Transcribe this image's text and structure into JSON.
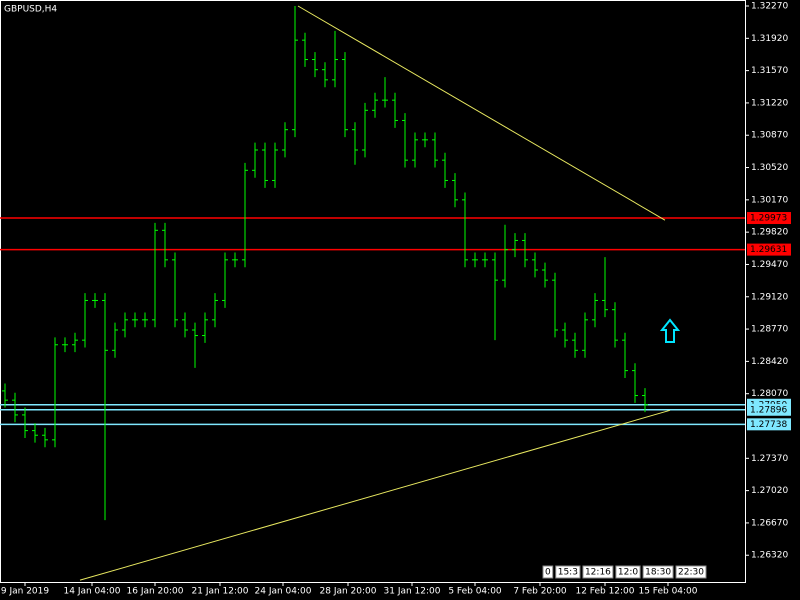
{
  "chart_data": {
    "type": "ohlc",
    "title": "GBPUSD,H4",
    "color": "#00ff00",
    "background": "#000000",
    "ylim": [
      1.2603,
      1.3227
    ],
    "xlim": [
      -0.5,
      74
    ],
    "yticks": [
      {
        "value": 1.3227,
        "label": "1.32270"
      },
      {
        "value": 1.3192,
        "label": "1.31920"
      },
      {
        "value": 1.3157,
        "label": "1.31570"
      },
      {
        "value": 1.3122,
        "label": "1.31220"
      },
      {
        "value": 1.3087,
        "label": "1.30870"
      },
      {
        "value": 1.3052,
        "label": "1.30520"
      },
      {
        "value": 1.3017,
        "label": "1.30170"
      },
      {
        "value": 1.2982,
        "label": "1.29820"
      },
      {
        "value": 1.2947,
        "label": "1.29470"
      },
      {
        "value": 1.2912,
        "label": "1.29120"
      },
      {
        "value": 1.2877,
        "label": "1.28770"
      },
      {
        "value": 1.2842,
        "label": "1.28420"
      },
      {
        "value": 1.2807,
        "label": "1.28070"
      },
      {
        "value": 1.2737,
        "label": "1.27370"
      },
      {
        "value": 1.2702,
        "label": "1.27020"
      },
      {
        "value": 1.2667,
        "label": "1.26670"
      },
      {
        "value": 1.2632,
        "label": "1.26320"
      }
    ],
    "xticks": [
      {
        "value": 2,
        "label": "9 Jan 2019"
      },
      {
        "value": 8.7,
        "label": "14 Jan 04:00"
      },
      {
        "value": 15,
        "label": "16 Jan 20:00"
      },
      {
        "value": 21.5,
        "label": "21 Jan 12:00"
      },
      {
        "value": 27.8,
        "label": "24 Jan 04:00"
      },
      {
        "value": 34.3,
        "label": "28 Jan 20:00"
      },
      {
        "value": 40.7,
        "label": "31 Jan 12:00"
      },
      {
        "value": 47,
        "label": "5 Feb 04:00"
      },
      {
        "value": 53.5,
        "label": "7 Feb 20:00"
      },
      {
        "value": 60,
        "label": "12 Feb 12:00"
      },
      {
        "value": 66.3,
        "label": "15 Feb 04:00"
      }
    ],
    "open": [
      1.281,
      1.28,
      1.2784,
      1.2767,
      1.2762,
      1.2757,
      1.286,
      1.286,
      1.2865,
      1.2908,
      1.2908,
      1.2854,
      1.2876,
      1.2887,
      1.2887,
      1.2887,
      1.2984,
      1.2952,
      1.2887,
      1.2876,
      1.287,
      1.2887,
      1.2908,
      1.2952,
      1.2952,
      1.3049,
      1.3071,
      1.3038,
      1.3071,
      1.3093,
      1.319,
      1.3169,
      1.3158,
      1.3147,
      1.3169,
      1.3093,
      1.3071,
      1.3114,
      1.3125,
      1.3125,
      1.3103,
      1.306,
      1.3082,
      1.3082,
      1.306,
      1.3038,
      1.3017,
      1.2952,
      1.2952,
      1.2952,
      1.293,
      1.2963,
      1.2973,
      1.2952,
      1.2941,
      1.293,
      1.2876,
      1.2865,
      1.2854,
      1.2887,
      1.2908,
      1.2898,
      1.2865,
      1.2832,
      1.2805
    ],
    "high": [
      1.2818,
      1.2808,
      1.2792,
      1.2775,
      1.277,
      1.2868,
      1.2868,
      1.2873,
      1.2916,
      1.2916,
      1.2916,
      1.2884,
      1.2895,
      1.2895,
      1.2895,
      1.2992,
      1.2992,
      1.296,
      1.2895,
      1.2884,
      1.2895,
      1.2916,
      1.296,
      1.296,
      1.3057,
      1.3079,
      1.3079,
      1.3079,
      1.3101,
      1.3227,
      1.3198,
      1.3177,
      1.3166,
      1.32,
      1.3177,
      1.3101,
      1.3122,
      1.3133,
      1.315,
      1.3133,
      1.3111,
      1.309,
      1.309,
      1.309,
      1.3068,
      1.3046,
      1.3025,
      1.296,
      1.296,
      1.296,
      1.299,
      1.2981,
      1.2981,
      1.296,
      1.2949,
      1.2938,
      1.2884,
      1.2873,
      1.2895,
      1.2916,
      1.2955,
      1.2906,
      1.2873,
      1.284,
      1.2813
    ],
    "low": [
      1.2792,
      1.2776,
      1.2759,
      1.2754,
      1.2749,
      1.2749,
      1.2852,
      1.2852,
      1.2857,
      1.29,
      1.267,
      1.2846,
      1.2868,
      1.2879,
      1.2879,
      1.2879,
      1.2944,
      1.2879,
      1.2868,
      1.2835,
      1.2862,
      1.2879,
      1.29,
      1.2944,
      1.2944,
      1.3041,
      1.303,
      1.303,
      1.3063,
      1.3085,
      1.3161,
      1.315,
      1.3139,
      1.3139,
      1.3085,
      1.3055,
      1.3063,
      1.3106,
      1.3117,
      1.3095,
      1.3052,
      1.3052,
      1.3074,
      1.3052,
      1.303,
      1.3009,
      1.2944,
      1.2944,
      1.2944,
      1.2865,
      1.2922,
      1.2955,
      1.2944,
      1.2933,
      1.2922,
      1.2868,
      1.2857,
      1.2846,
      1.2846,
      1.2879,
      1.289,
      1.2857,
      1.2824,
      1.2797,
      1.2787
    ],
    "close": [
      1.28,
      1.2784,
      1.2767,
      1.2762,
      1.2757,
      1.286,
      1.286,
      1.2865,
      1.2908,
      1.2908,
      1.2854,
      1.2876,
      1.2887,
      1.2887,
      1.2887,
      1.2984,
      1.2952,
      1.2887,
      1.2876,
      1.287,
      1.2887,
      1.2908,
      1.2952,
      1.2952,
      1.3049,
      1.3071,
      1.3038,
      1.3071,
      1.3093,
      1.319,
      1.3169,
      1.3158,
      1.3147,
      1.3169,
      1.3093,
      1.3071,
      1.3114,
      1.3125,
      1.3125,
      1.3103,
      1.306,
      1.3082,
      1.3082,
      1.306,
      1.3038,
      1.3017,
      1.2952,
      1.2952,
      1.2952,
      1.293,
      1.2963,
      1.2973,
      1.2952,
      1.2941,
      1.293,
      1.2876,
      1.2865,
      1.2854,
      1.2887,
      1.2908,
      1.2898,
      1.2865,
      1.2832,
      1.2805,
      1.2795
    ],
    "levels": [
      {
        "value": 1.29973,
        "label": "1.29973",
        "color": "#ff0000"
      },
      {
        "value": 1.29631,
        "label": "1.29631",
        "color": "#ff0000"
      },
      {
        "value": 1.2795,
        "label": "1.27950",
        "color": "#7fe8ff"
      },
      {
        "value": 1.27896,
        "label": "1.27896",
        "color": "#7fe8ff"
      },
      {
        "value": 1.27738,
        "label": "1.27738",
        "color": "#7fe8ff"
      }
    ],
    "trendlines": [
      {
        "x": [
          29.3,
          66
        ],
        "y": [
          1.3227,
          1.2995
        ],
        "color": "#e8e860"
      },
      {
        "x": [
          7.5,
          66.5
        ],
        "y": [
          1.2605,
          1.2789
        ],
        "color": "#e8e860"
      }
    ],
    "arrow": {
      "x": 66.5,
      "y": 1.2876,
      "color": "#00e5ff"
    },
    "overlay_labels": [
      "0",
      "15:3",
      "12:16",
      "12:0",
      "18:30",
      "22:30"
    ]
  }
}
